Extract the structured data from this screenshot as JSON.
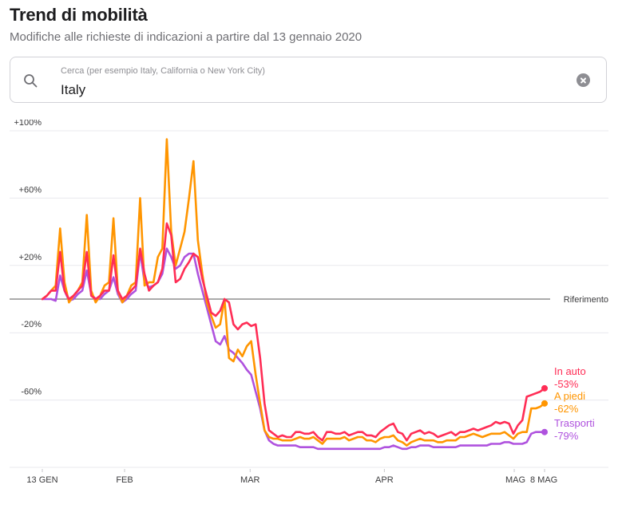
{
  "header": {
    "title": "Trend di mobilità",
    "subtitle": "Modifiche alle richieste di indicazioni a partire dal 13 gennaio 2020"
  },
  "search": {
    "placeholder": "Cerca (per esempio Italy, California o New York City)",
    "value": "Italy",
    "icon": "search-icon",
    "clear_icon": "clear-icon"
  },
  "chart_data": {
    "type": "line",
    "title": "",
    "xlabel": "",
    "ylabel": "",
    "x_start": "2020-01-13",
    "x_end": "2020-05-08",
    "ylim": [
      -100,
      100
    ],
    "y_ticks": [
      "+100%",
      "+60%",
      "+20%",
      "-20%",
      "-60%"
    ],
    "y_tick_values": [
      100,
      60,
      20,
      -20,
      -60
    ],
    "x_ticks": [
      {
        "date": "2020-01-13",
        "label": "13 GEN"
      },
      {
        "date": "2020-02-01",
        "label": "FEB"
      },
      {
        "date": "2020-03-01",
        "label": "MAR"
      },
      {
        "date": "2020-04-01",
        "label": "APR"
      },
      {
        "date": "2020-05-01",
        "label": "MAG"
      },
      {
        "date": "2020-05-08",
        "label": "8 MAG"
      }
    ],
    "baseline_label": "Riferimento",
    "grid": true,
    "series": [
      {
        "name": "In auto",
        "end_label": "-53%",
        "color": "#ff2d55",
        "values": [
          0,
          2,
          5,
          5,
          28,
          5,
          0,
          2,
          5,
          8,
          28,
          2,
          0,
          2,
          5,
          5,
          26,
          5,
          0,
          2,
          5,
          8,
          30,
          15,
          5,
          8,
          10,
          18,
          45,
          38,
          10,
          12,
          18,
          22,
          27,
          25,
          12,
          2,
          -8,
          -10,
          -7,
          0,
          -2,
          -15,
          -18,
          -15,
          -14,
          -16,
          -15,
          -35,
          -62,
          -78,
          -80,
          -82,
          -81,
          -82,
          -82,
          -79,
          -79,
          -80,
          -80,
          -79,
          -82,
          -84,
          -79,
          -79,
          -80,
          -80,
          -79,
          -81,
          -80,
          -79,
          -79,
          -81,
          -81,
          -82,
          -79,
          -77,
          -75,
          -74,
          -79,
          -80,
          -84,
          -80,
          -79,
          -78,
          -80,
          -79,
          -80,
          -82,
          -81,
          -80,
          -79,
          -81,
          -79,
          -79,
          -78,
          -77,
          -78,
          -77,
          -76,
          -75,
          -73,
          -74,
          -73,
          -74,
          -80,
          -75,
          -72,
          -58,
          -57,
          -56,
          -55,
          -53
        ]
      },
      {
        "name": "A piedi",
        "end_label": "-62%",
        "color": "#ff9500",
        "values": [
          0,
          2,
          5,
          8,
          42,
          10,
          -2,
          2,
          5,
          10,
          50,
          5,
          -2,
          2,
          8,
          10,
          48,
          5,
          -2,
          2,
          8,
          10,
          60,
          8,
          10,
          10,
          25,
          30,
          95,
          40,
          20,
          30,
          40,
          60,
          82,
          35,
          15,
          -2,
          -10,
          -17,
          -15,
          0,
          -35,
          -37,
          -30,
          -34,
          -28,
          -25,
          -45,
          -62,
          -78,
          -82,
          -83,
          -83,
          -84,
          -84,
          -84,
          -83,
          -82,
          -83,
          -83,
          -82,
          -84,
          -86,
          -83,
          -83,
          -83,
          -83,
          -82,
          -84,
          -83,
          -82,
          -82,
          -84,
          -84,
          -85,
          -83,
          -82,
          -82,
          -81,
          -84,
          -85,
          -87,
          -85,
          -84,
          -83,
          -84,
          -84,
          -84,
          -85,
          -85,
          -84,
          -84,
          -84,
          -82,
          -82,
          -81,
          -80,
          -81,
          -82,
          -81,
          -80,
          -80,
          -80,
          -79,
          -81,
          -83,
          -80,
          -79,
          -79,
          -65,
          -65,
          -64,
          -62
        ]
      },
      {
        "name": "Trasporti",
        "end_label": "-79%",
        "color": "#af52de",
        "values": [
          0,
          0,
          0,
          -1,
          14,
          5,
          -1,
          0,
          3,
          5,
          17,
          3,
          0,
          0,
          3,
          5,
          13,
          3,
          -2,
          0,
          3,
          5,
          28,
          10,
          7,
          8,
          10,
          15,
          30,
          25,
          18,
          20,
          25,
          27,
          27,
          15,
          5,
          -5,
          -15,
          -25,
          -27,
          -22,
          -30,
          -32,
          -35,
          -38,
          -42,
          -45,
          -55,
          -65,
          -78,
          -84,
          -86,
          -87,
          -87,
          -87,
          -87,
          -87,
          -88,
          -88,
          -88,
          -88,
          -89,
          -89,
          -89,
          -89,
          -89,
          -89,
          -89,
          -89,
          -89,
          -89,
          -89,
          -89,
          -89,
          -89,
          -89,
          -88,
          -88,
          -87,
          -88,
          -89,
          -89,
          -88,
          -88,
          -87,
          -87,
          -87,
          -88,
          -88,
          -88,
          -88,
          -88,
          -88,
          -87,
          -87,
          -87,
          -87,
          -87,
          -87,
          -87,
          -86,
          -86,
          -86,
          -85,
          -85,
          -86,
          -86,
          -86,
          -85,
          -80,
          -79,
          -79,
          -79
        ]
      }
    ]
  }
}
